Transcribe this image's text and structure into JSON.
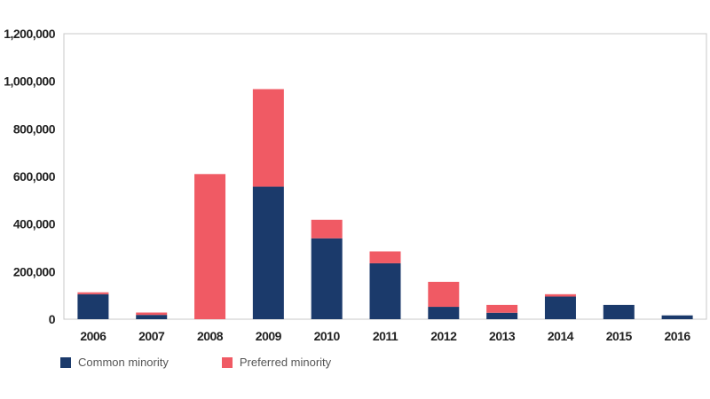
{
  "chart_data": {
    "type": "bar",
    "stacked": true,
    "title": "",
    "xlabel": "",
    "ylabel": "",
    "categories": [
      "2006",
      "2007",
      "2008",
      "2009",
      "2010",
      "2011",
      "2012",
      "2013",
      "2014",
      "2015",
      "2016"
    ],
    "series": [
      {
        "name": "Common minority",
        "color": "#1b3a6b",
        "values": [
          105000,
          18000,
          0,
          557000,
          340000,
          235000,
          52000,
          27000,
          95000,
          60000,
          16000
        ]
      },
      {
        "name": "Preferred minority",
        "color": "#f05a64",
        "values": [
          8000,
          10000,
          610000,
          410000,
          78000,
          50000,
          105000,
          33000,
          10000,
          0,
          0
        ]
      }
    ],
    "ylim": [
      0,
      1200000
    ],
    "yticks": [
      0,
      200000,
      400000,
      600000,
      800000,
      1000000,
      1200000
    ],
    "ytick_labels": [
      "0",
      "200,000",
      "400,000",
      "600,000",
      "800,000",
      "1,000,000",
      "1,200,000"
    ],
    "grid": false,
    "legend_position": "bottom-left"
  }
}
